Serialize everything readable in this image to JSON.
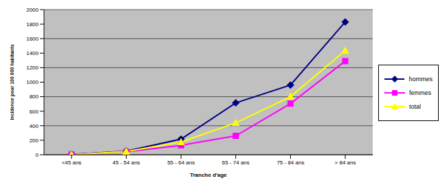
{
  "chart_data": {
    "type": "line",
    "x_label": "Tranche d'age",
    "y_label": "Incidence pour 100 000 habitants",
    "categories": [
      "<45 ans",
      "45 - 54 ans",
      "55 - 64 ans",
      "65 - 74 ans",
      "75 - 84 ans",
      "> 84 ans"
    ],
    "series": [
      {
        "name": "hommes",
        "color": "#000080",
        "marker": "diamond",
        "values": [
          5,
          50,
          215,
          715,
          960,
          1830
        ]
      },
      {
        "name": "femmes",
        "color": "#FF00FF",
        "marker": "square",
        "values": [
          5,
          40,
          130,
          260,
          705,
          1290
        ]
      },
      {
        "name": "total",
        "color": "#FFFF00",
        "marker": "triangle",
        "values": [
          0,
          45,
          175,
          440,
          800,
          1435
        ]
      }
    ],
    "ylim": [
      0,
      2000
    ],
    "yticks": [
      0,
      200,
      400,
      600,
      800,
      1000,
      1200,
      1400,
      1600,
      1800,
      2000
    ],
    "grid": true,
    "legend": "right"
  }
}
